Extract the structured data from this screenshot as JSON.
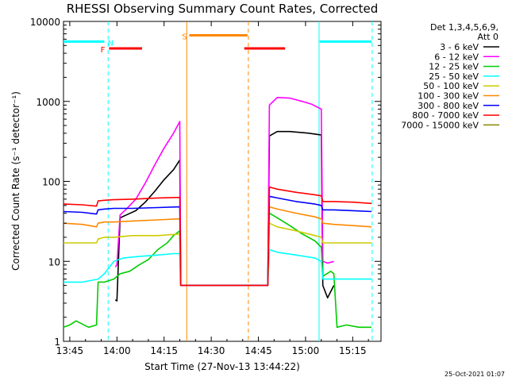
{
  "chart_data": {
    "type": "line",
    "title": "RHESSI Observing Summary Count Rates, Corrected",
    "xlabel": "Start Time (27-Nov-13 13:44:22)",
    "ylabel": "Corrected Count Rate (s⁻¹ detector⁻¹)",
    "y_scale": "log",
    "ylim": [
      1,
      10000
    ],
    "xlim_minutes": [
      -2,
      99
    ],
    "x_tick_labels": [
      "13:45",
      "14:00",
      "14:15",
      "14:30",
      "14:45",
      "15:00",
      "15:15"
    ],
    "x_tick_minutes": [
      0,
      15,
      30,
      45,
      60,
      75,
      90
    ],
    "y_tick_labels": [
      "1",
      "10",
      "100",
      "1000",
      "10000"
    ],
    "y_tick_values": [
      1,
      10,
      100,
      1000,
      10000
    ],
    "legend_header": [
      "Det 1,3,4,5,6,9,",
      "Att 0"
    ],
    "legend_position": "right",
    "footer_date": "25-Oct-2021 01:07",
    "series": [
      {
        "name": "3 - 6 keV",
        "color": "#000000",
        "points": [
          [
            14.5,
            3.3
          ],
          [
            15.0,
            3.2
          ],
          [
            16,
            35
          ],
          [
            18,
            38
          ],
          [
            21,
            43
          ],
          [
            24,
            55
          ],
          [
            27,
            75
          ],
          [
            30,
            105
          ],
          [
            33,
            140
          ],
          [
            35,
            185
          ],
          [
            35.3,
            5
          ],
          [
            63,
            5
          ],
          [
            63.5,
            370
          ],
          [
            66,
            420
          ],
          [
            70,
            420
          ],
          [
            76,
            400
          ],
          [
            80,
            380
          ],
          [
            80.5,
            5
          ],
          [
            82,
            3.5
          ],
          [
            84,
            5
          ]
        ]
      },
      {
        "name": "6 - 12 keV",
        "color": "#ff00ff",
        "points": [
          [
            14.5,
            8.5
          ],
          [
            15.0,
            9.0
          ],
          [
            16,
            38
          ],
          [
            18,
            45
          ],
          [
            21,
            60
          ],
          [
            24,
            95
          ],
          [
            27,
            160
          ],
          [
            30,
            260
          ],
          [
            33,
            400
          ],
          [
            35,
            560
          ],
          [
            35.3,
            5
          ],
          [
            63,
            5
          ],
          [
            63.5,
            900
          ],
          [
            66,
            1120
          ],
          [
            70,
            1100
          ],
          [
            74,
            1000
          ],
          [
            77,
            920
          ],
          [
            80,
            800
          ],
          [
            80.5,
            10
          ],
          [
            82,
            9.5
          ],
          [
            84,
            10
          ]
        ]
      },
      {
        "name": "12 - 25 keV",
        "color": "#00cc00",
        "points": [
          [
            -2,
            1.5
          ],
          [
            0,
            1.6
          ],
          [
            2,
            1.8
          ],
          [
            6,
            1.5
          ],
          [
            8.5,
            1.6
          ],
          [
            9,
            5.5
          ],
          [
            11,
            5.5
          ],
          [
            14,
            6
          ],
          [
            16,
            7
          ],
          [
            19,
            7.5
          ],
          [
            22,
            9
          ],
          [
            25,
            10.5
          ],
          [
            28,
            14
          ],
          [
            31,
            17
          ],
          [
            33,
            21
          ],
          [
            35,
            24
          ],
          [
            35.3,
            5
          ],
          [
            63,
            5
          ],
          [
            63.5,
            40
          ],
          [
            66,
            35
          ],
          [
            70,
            28
          ],
          [
            74,
            22
          ],
          [
            78,
            18
          ],
          [
            80,
            15
          ],
          [
            80.5,
            6.5
          ],
          [
            83,
            7.5
          ],
          [
            84,
            7
          ],
          [
            85,
            1.5
          ],
          [
            88,
            1.6
          ],
          [
            92,
            1.5
          ],
          [
            96,
            1.5
          ]
        ]
      },
      {
        "name": "25 - 50 keV",
        "color": "#00ffff",
        "points": [
          [
            -2,
            5.5
          ],
          [
            4,
            5.5
          ],
          [
            9,
            6
          ],
          [
            11,
            7
          ],
          [
            14,
            10
          ],
          [
            17,
            11
          ],
          [
            22,
            11.5
          ],
          [
            28,
            12
          ],
          [
            33,
            12.5
          ],
          [
            35,
            12.5
          ],
          [
            35.3,
            5
          ],
          [
            63,
            5
          ],
          [
            63.5,
            14
          ],
          [
            66,
            13
          ],
          [
            72,
            12
          ],
          [
            78,
            11
          ],
          [
            80,
            10
          ],
          [
            80.5,
            6
          ],
          [
            84,
            6
          ],
          [
            90,
            6
          ],
          [
            96,
            6
          ]
        ]
      },
      {
        "name": "50 - 100 keV",
        "color": "#cccc00",
        "points": [
          [
            -2,
            17
          ],
          [
            4,
            17
          ],
          [
            8.5,
            17
          ],
          [
            9,
            19
          ],
          [
            11,
            20
          ],
          [
            14,
            20
          ],
          [
            20,
            21
          ],
          [
            28,
            21
          ],
          [
            35,
            22
          ],
          [
            35.3,
            5
          ],
          [
            63,
            5
          ],
          [
            63.5,
            30
          ],
          [
            66,
            27
          ],
          [
            72,
            24
          ],
          [
            78,
            21
          ],
          [
            80,
            20
          ],
          [
            80.5,
            17
          ],
          [
            84,
            17
          ],
          [
            90,
            17
          ],
          [
            96,
            17
          ]
        ]
      },
      {
        "name": "100 - 300 keV",
        "color": "#ff8800",
        "points": [
          [
            -2,
            30
          ],
          [
            4,
            29
          ],
          [
            8.5,
            27
          ],
          [
            9,
            30
          ],
          [
            11,
            31
          ],
          [
            14,
            31
          ],
          [
            20,
            32
          ],
          [
            28,
            33
          ],
          [
            35,
            34
          ],
          [
            35.3,
            5
          ],
          [
            63,
            5
          ],
          [
            63.5,
            48
          ],
          [
            66,
            45
          ],
          [
            72,
            40
          ],
          [
            78,
            36
          ],
          [
            80,
            34
          ],
          [
            80.5,
            30
          ],
          [
            84,
            29
          ],
          [
            90,
            28
          ],
          [
            96,
            27
          ]
        ]
      },
      {
        "name": "300 - 800 keV",
        "color": "#0000ff",
        "points": [
          [
            -2,
            42
          ],
          [
            4,
            41
          ],
          [
            8.5,
            39
          ],
          [
            9,
            44
          ],
          [
            11,
            45
          ],
          [
            14,
            46
          ],
          [
            20,
            46
          ],
          [
            28,
            47
          ],
          [
            35,
            48
          ],
          [
            35.3,
            5
          ],
          [
            63,
            5
          ],
          [
            63.5,
            65
          ],
          [
            66,
            62
          ],
          [
            72,
            56
          ],
          [
            78,
            52
          ],
          [
            80,
            50
          ],
          [
            80.5,
            44
          ],
          [
            84,
            44
          ],
          [
            90,
            43
          ],
          [
            96,
            42
          ]
        ]
      },
      {
        "name": "800 - 7000 keV",
        "color": "#ff0000",
        "points": [
          [
            -2,
            52
          ],
          [
            4,
            51
          ],
          [
            8.5,
            49
          ],
          [
            9,
            57
          ],
          [
            11,
            58
          ],
          [
            14,
            59
          ],
          [
            20,
            60
          ],
          [
            28,
            62
          ],
          [
            35,
            63
          ],
          [
            35.3,
            5
          ],
          [
            63,
            5
          ],
          [
            63.5,
            85
          ],
          [
            66,
            80
          ],
          [
            72,
            73
          ],
          [
            78,
            68
          ],
          [
            80,
            66
          ],
          [
            80.5,
            56
          ],
          [
            84,
            56
          ],
          [
            90,
            55
          ],
          [
            96,
            53
          ]
        ]
      },
      {
        "name": "7000 - 15000 keV",
        "color": "#888800",
        "points": []
      }
    ],
    "flag_bars": [
      {
        "label": "N",
        "color": "#00ffff",
        "segments": [
          [
            -2,
            11
          ],
          [
            79.5,
            96
          ]
        ],
        "level": 5600,
        "label_minute": 13,
        "label_color": "#00ffff"
      },
      {
        "label": "F",
        "color": "#ff0000",
        "segments": [
          [
            12.5,
            23
          ],
          [
            55.5,
            68.5
          ]
        ],
        "level": 4600,
        "label_minute": 10.5,
        "label_color": "#ff0000"
      },
      {
        "label": "S",
        "color": "#ff8800",
        "segments": [
          [
            38,
            56.5
          ]
        ],
        "level": 6700,
        "label_minute": 36.5,
        "label_color": "#ff8800"
      }
    ],
    "vertical_lines": [
      {
        "minute": 12.2,
        "color": "#00ffff",
        "dashed": true
      },
      {
        "minute": 37.2,
        "color": "#ff8800",
        "dashed": false
      },
      {
        "minute": 56.8,
        "color": "#ff8800",
        "dashed": true
      },
      {
        "minute": 79.3,
        "color": "#00ffff",
        "dashed": false
      },
      {
        "minute": 96.2,
        "color": "#00ffff",
        "dashed": true
      }
    ]
  }
}
